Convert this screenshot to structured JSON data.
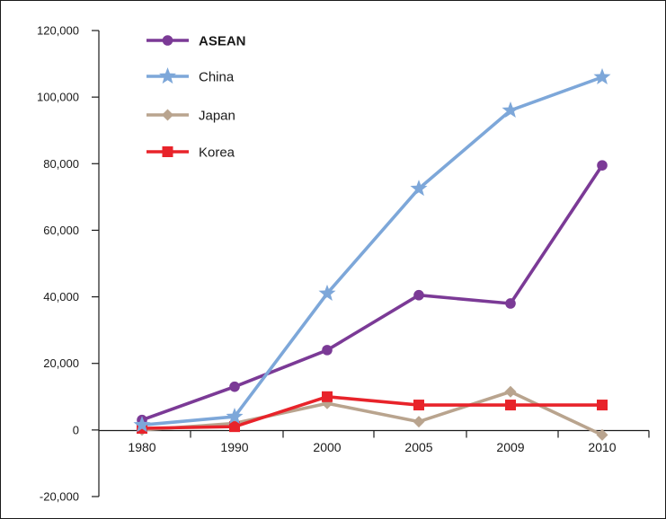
{
  "chart_data": {
    "type": "line",
    "title": "",
    "xlabel": "",
    "ylabel": "",
    "categories": [
      "1980",
      "1990",
      "2000",
      "2005",
      "2009",
      "2010"
    ],
    "ylim": [
      -20000,
      120000
    ],
    "yticks": [
      -20000,
      0,
      20000,
      40000,
      60000,
      80000,
      100000,
      120000
    ],
    "ytick_labels": [
      "-20,000",
      "0",
      "20,000",
      "40,000",
      "60,000",
      "80,000",
      "100,000",
      "120,000"
    ],
    "grid": false,
    "legend_position": "top-left",
    "series": [
      {
        "name": "ASEAN",
        "color": "#7b3a96",
        "marker": "circle",
        "legend_bold": true,
        "values": [
          3000,
          13000,
          24000,
          40500,
          38000,
          79500
        ]
      },
      {
        "name": "China",
        "color": "#7da7d9",
        "marker": "star",
        "legend_bold": false,
        "values": [
          1500,
          4000,
          41000,
          72500,
          96000,
          106000
        ]
      },
      {
        "name": "Japan",
        "color": "#b9a48e",
        "marker": "diamond",
        "legend_bold": false,
        "values": [
          0,
          2000,
          8000,
          2500,
          11500,
          -1500
        ]
      },
      {
        "name": "Korea",
        "color": "#e8232a",
        "marker": "square",
        "legend_bold": false,
        "values": [
          500,
          1000,
          10000,
          7500,
          7500,
          7500
        ]
      }
    ]
  }
}
